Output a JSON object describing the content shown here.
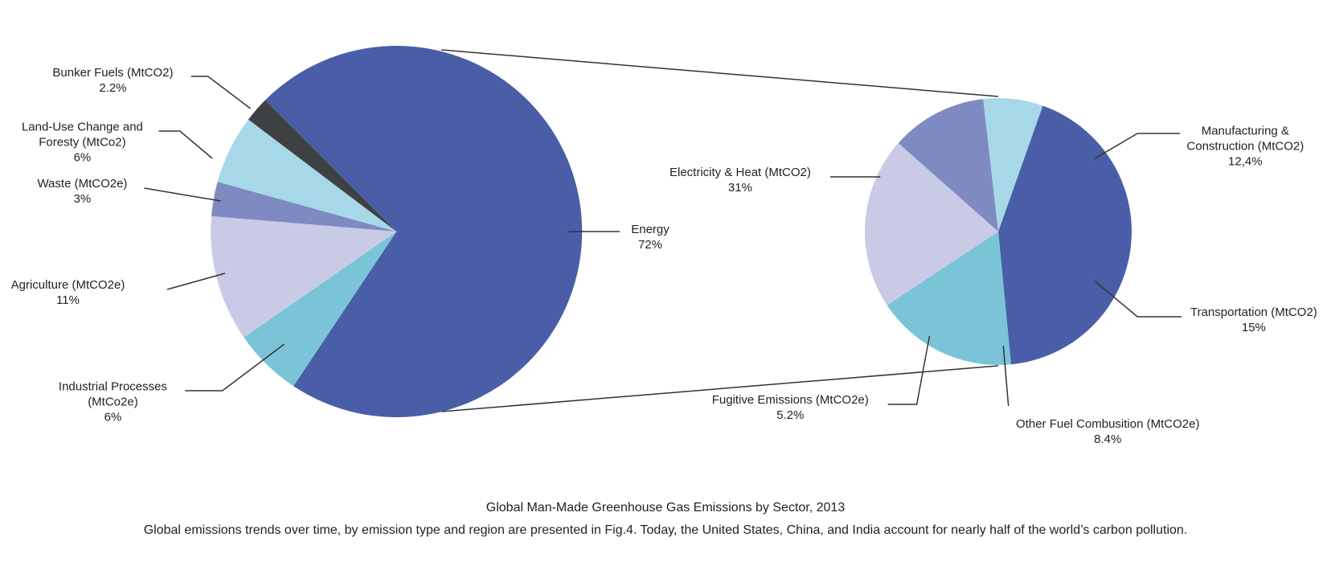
{
  "chart_data": [
    {
      "type": "pie",
      "categories": [
        "Energy",
        "Industrial Processes (MtCo2e)",
        "Agriculture (MtCO2e)",
        "Waste (MtCO2e)",
        "Land-Use Change and Foresty (MtCo2)",
        "Bunker Fuels (MtCO2)"
      ],
      "values": [
        72,
        6,
        11,
        3,
        6,
        2.2
      ],
      "value_labels": [
        "72%",
        "6%",
        "11%",
        "3%",
        "6%",
        "2.2%"
      ],
      "colors": [
        "#4a5ea8",
        "#7bc4d8",
        "#c9cbe6",
        "#7f89c2",
        "#a6d8e8",
        "#3f4044"
      ]
    },
    {
      "type": "pie",
      "categories": [
        "Electricity & Heat (MtCO2)",
        "Manufacturing & Construction (MtCO2)",
        "Transportation (MtCO2)",
        "Other Fuel Combusition (MtCO2e)",
        "Fugitive Emissions (MtCO2e)"
      ],
      "values": [
        31,
        12.4,
        15,
        8.4,
        5.2
      ],
      "value_labels": [
        "31%",
        "12,4%",
        "15%",
        "8.4%",
        "5.2%"
      ],
      "colors": [
        "#4a5ea8",
        "#7bc4d8",
        "#c9cbe6",
        "#7f89c2",
        "#a6d8e8"
      ]
    }
  ],
  "caption": {
    "title": "Global Man-Made Greenhouse Gas Emissions by Sector, 2013",
    "text": "Global emissions trends over time, by emission type and region are presented in Fig.4. Today, the United States, China, and India account for nearly half of the world’s carbon pollution."
  }
}
